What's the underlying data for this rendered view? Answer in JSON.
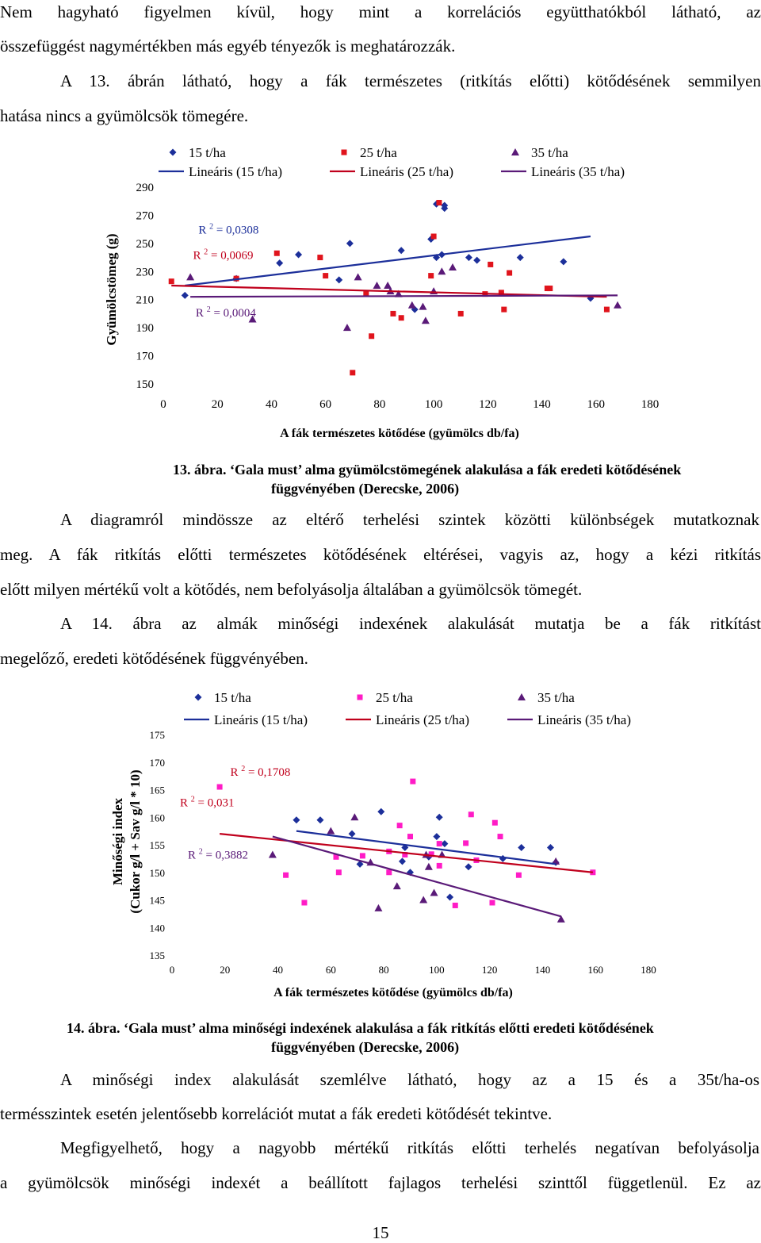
{
  "paragraphs_top": [
    "Nem hagyható figyelmen kívül, hogy mint a korrelációs együtthatókból látható, az",
    "összefüggést nagymértékben más egyéb tényezők is meghatározzák.",
    "A 13. ábrán látható, hogy a fák természetes (ritkítás előtti) kötődésének semmilyen",
    "hatása nincs a gyümölcsök tömegére."
  ],
  "figure13": {
    "caption_line1": "13. ábra. ‘Gala must’ alma gyümölcstömegének alakulása a fák eredeti kötődésének",
    "caption_line2": "függvényében (Derecske, 2006)"
  },
  "paragraphs_middle": [
    "A diagramról mindössze az eltérő terhelési szintek közötti különbségek mutatkoznak",
    "meg. A fák ritkítás előtti természetes kötődésének eltérései, vagyis az, hogy a kézi ritkítás",
    "előtt milyen mértékű volt a kötődés, nem befolyásolja általában a gyümölcsök tömegét.",
    "A 14. ábra az almák minőségi indexének alakulását mutatja be a fák ritkítást",
    "megelőző, eredeti kötődésének függvényében."
  ],
  "figure14": {
    "caption_line1": "14. ábra. ‘Gala must’ alma minőségi indexének alakulása a fák ritkítás előtti eredeti kötődésének",
    "caption_line2": "függvényében (Derecske, 2006)"
  },
  "paragraphs_bottom": [
    "A minőségi index alakulását szemlélve látható, hogy az a 15 és a 35t/ha-os",
    "termésszintek esetén jelentősebb korrelációt mutat a fák eredeti kötődését tekintve.",
    "Megfigyelhető, hogy a nagyobb mértékű ritkítás előtti terhelés negatívan befolyásolja",
    "a gyümölcsök minőségi indexét a beállított fajlagos terhelési szinttől függetlenül. Ez az"
  ],
  "page_number": "15",
  "chart_data": [
    {
      "type": "scatter",
      "title": "",
      "xlabel": "A fák  természetes kötődése (gyümölcs db/fa)",
      "ylabel": "Gyümölcstömeg (g)",
      "xlim": [
        0,
        180
      ],
      "ylim": [
        150,
        290
      ],
      "xticks": [
        0,
        20,
        40,
        60,
        80,
        100,
        120,
        140,
        160,
        180
      ],
      "yticks": [
        150,
        170,
        190,
        210,
        230,
        250,
        270,
        290
      ],
      "legend_items": [
        "15 t/ha",
        "25 t/ha",
        "35 t/ha",
        "Lineáris (15 t/ha)",
        "Lineáris (25 t/ha)",
        "Lineáris (35 t/ha)"
      ],
      "annotations": [
        {
          "text": "R 2 = 0,0308",
          "x": 13,
          "y": 257,
          "color": "#1c2f9a"
        },
        {
          "text": "R 2 = 0,0069",
          "x": 11,
          "y": 239,
          "color": "#c0001c"
        },
        {
          "text": "R 2 = 0,0004",
          "x": 12,
          "y": 198,
          "color": "#5a1a78"
        }
      ],
      "series": [
        {
          "name": "15 t/ha",
          "marker": "diamond",
          "color": "#1c2f9a",
          "points": [
            [
              8,
              213
            ],
            [
              27,
              225
            ],
            [
              43,
              236
            ],
            [
              50,
              242
            ],
            [
              65,
              224
            ],
            [
              69,
              250
            ],
            [
              88,
              245
            ],
            [
              93,
              203
            ],
            [
              101,
              278
            ],
            [
              104,
              277
            ],
            [
              104,
              275
            ],
            [
              99,
              253
            ],
            [
              101,
              240
            ],
            [
              103,
              242
            ],
            [
              113,
              240
            ],
            [
              116,
              238
            ],
            [
              132,
              240
            ],
            [
              148,
              237
            ],
            [
              158,
              211
            ]
          ]
        },
        {
          "name": "25 t/ha",
          "marker": "square",
          "color": "#e0141c",
          "points": [
            [
              3,
              223
            ],
            [
              27,
              225
            ],
            [
              42,
              243
            ],
            [
              58,
              240
            ],
            [
              60,
              227
            ],
            [
              70,
              158
            ],
            [
              75,
              214
            ],
            [
              77,
              184
            ],
            [
              85,
              200
            ],
            [
              88,
              197
            ],
            [
              99,
              227
            ],
            [
              102,
              279
            ],
            [
              100,
              255
            ],
            [
              110,
              200
            ],
            [
              119,
              214
            ],
            [
              121,
              235
            ],
            [
              125,
              215
            ],
            [
              126,
              203
            ],
            [
              128,
              229
            ],
            [
              142,
              218
            ],
            [
              143,
              218
            ],
            [
              164,
              203
            ]
          ]
        },
        {
          "name": "35 t/ha",
          "marker": "triangle",
          "color": "#5a1a78",
          "points": [
            [
              10,
              226
            ],
            [
              33,
              196
            ],
            [
              68,
              190
            ],
            [
              72,
              226
            ],
            [
              79,
              220
            ],
            [
              83,
              220
            ],
            [
              84,
              216
            ],
            [
              87,
              214
            ],
            [
              92,
              206
            ],
            [
              96,
              205
            ],
            [
              97,
              195
            ],
            [
              100,
              216
            ],
            [
              103,
              230
            ],
            [
              107,
              233
            ],
            [
              168,
              206
            ]
          ]
        }
      ],
      "trendlines": [
        {
          "name": "Lineáris (15 t/ha)",
          "color": "#1c2f9a",
          "x": [
            8,
            158
          ],
          "y": [
            220,
            255
          ]
        },
        {
          "name": "Lineáris (25 t/ha)",
          "color": "#c0001c",
          "x": [
            3,
            164
          ],
          "y": [
            220,
            212
          ]
        },
        {
          "name": "Lineáris (35 t/ha)",
          "color": "#5a1a78",
          "x": [
            10,
            168
          ],
          "y": [
            212,
            213
          ]
        }
      ]
    },
    {
      "type": "scatter",
      "title": "",
      "xlabel": "A fák természetes kötődése (gyümölcs db/fa)",
      "ylabel_line1": "Minőségi index",
      "ylabel_line2": "(Cukor g/l + Sav g/l * 10)",
      "xlim": [
        0,
        180
      ],
      "ylim": [
        135,
        175
      ],
      "xticks": [
        0,
        20,
        40,
        60,
        80,
        100,
        120,
        140,
        160,
        180
      ],
      "yticks": [
        135,
        140,
        145,
        150,
        155,
        160,
        165,
        170,
        175
      ],
      "legend_items": [
        "15 t/ha",
        "25 t/ha",
        "35 t/ha",
        "Lineáris (15 t/ha)",
        "Lineáris (25 t/ha)",
        "Lineáris (35 t/ha)"
      ],
      "annotations": [
        {
          "text": "R 2 = 0,1708",
          "x": 22,
          "y": 167.5,
          "color": "#c0001c"
        },
        {
          "text": "R 2 = 0,031",
          "x": 3,
          "y": 162,
          "color": "#c0001c"
        },
        {
          "text": "R 2 = 0,3882",
          "x": 6,
          "y": 152.5,
          "color": "#5a1a78"
        }
      ],
      "series": [
        {
          "name": "15 t/ha",
          "marker": "diamond",
          "color": "#1c2f9a",
          "points": [
            [
              47,
              159.5
            ],
            [
              56,
              159.5
            ],
            [
              68,
              157
            ],
            [
              71,
              151.5
            ],
            [
              79,
              161
            ],
            [
              87,
              152
            ],
            [
              88,
              154.5
            ],
            [
              90,
              150
            ],
            [
              97,
              152.8
            ],
            [
              100,
              156.5
            ],
            [
              101,
              160
            ],
            [
              105,
              145.5
            ],
            [
              103,
              155.2
            ],
            [
              112,
              151
            ],
            [
              125,
              152.5
            ],
            [
              132,
              154.5
            ],
            [
              143,
              154.5
            ],
            [
              145,
              151.8
            ]
          ]
        },
        {
          "name": "25 t/ha",
          "marker": "square",
          "color": "#ff1cc6",
          "points": [
            [
              18,
              165.5
            ],
            [
              43,
              149.5
            ],
            [
              50,
              144.5
            ],
            [
              62,
              152.8
            ],
            [
              63,
              150
            ],
            [
              72,
              153
            ],
            [
              82,
              153.8
            ],
            [
              82,
              150
            ],
            [
              86,
              158.5
            ],
            [
              88,
              153.2
            ],
            [
              90,
              156.5
            ],
            [
              91,
              166.5
            ],
            [
              98,
              153.3
            ],
            [
              101,
              151.2
            ],
            [
              101,
              155.2
            ],
            [
              107,
              144
            ],
            [
              111,
              155.3
            ],
            [
              113,
              160.5
            ],
            [
              115,
              152.2
            ],
            [
              121,
              144.5
            ],
            [
              122,
              159
            ],
            [
              124,
              156.5
            ],
            [
              131,
              149.5
            ],
            [
              159,
              150
            ]
          ]
        },
        {
          "name": "35 t/ha",
          "marker": "triangle",
          "color": "#5a1a78",
          "points": [
            [
              38,
              153.2
            ],
            [
              60,
              157.5
            ],
            [
              69,
              160
            ],
            [
              75,
              151.8
            ],
            [
              78,
              143.5
            ],
            [
              85,
              147.5
            ],
            [
              95,
              145
            ],
            [
              96,
              153.2
            ],
            [
              97,
              151
            ],
            [
              99,
              146.3
            ],
            [
              102,
              153.2
            ],
            [
              145,
              152
            ],
            [
              147,
              141.5
            ]
          ]
        }
      ],
      "trendlines": [
        {
          "name": "Lineáris (15 t/ha)",
          "color": "#1c2f9a",
          "x": [
            47,
            145
          ],
          "y": [
            157.5,
            151.5
          ]
        },
        {
          "name": "Lineáris (25 t/ha)",
          "color": "#c0001c",
          "x": [
            18,
            159
          ],
          "y": [
            157,
            150
          ]
        },
        {
          "name": "Lineáris (35 t/ha)",
          "color": "#5a1a78",
          "x": [
            38,
            147
          ],
          "y": [
            156.5,
            142
          ]
        }
      ]
    }
  ]
}
